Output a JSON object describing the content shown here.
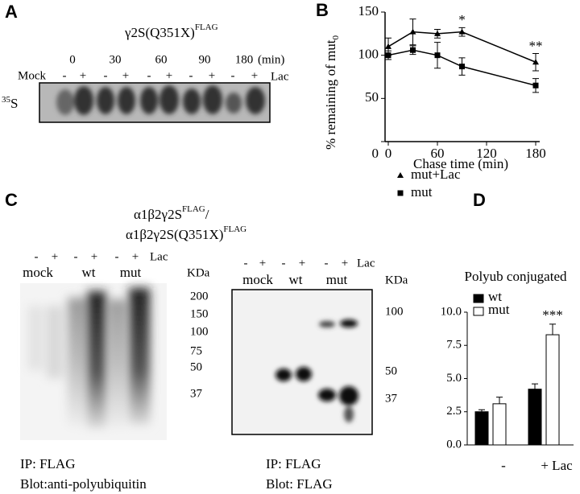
{
  "panels": {
    "a": {
      "letter": "A",
      "title": "γ2S(Q351X)",
      "title_sup": "FLAG",
      "times": [
        "0",
        "30",
        "60",
        "90",
        "180"
      ],
      "time_unit": "(min)",
      "mock": "Mock",
      "signs": [
        "-",
        "+",
        "-",
        "+",
        "-",
        "+",
        "-",
        "+",
        "-",
        "+"
      ],
      "lac": "Lac",
      "isotope_sup": "35",
      "isotope": "S"
    },
    "c": {
      "letter": "C",
      "title1": "α1β2γ2S",
      "title1_sup": "FLAG",
      "title1_end": "/",
      "title2": "α1β2γ2S(Q351X)",
      "title2_sup": "FLAG",
      "left": {
        "signs": [
          "-",
          "+",
          "-",
          "+",
          "-",
          "+"
        ],
        "lac": "Lac",
        "groups": [
          "mock",
          "wt",
          "mut"
        ],
        "unit": "KDa",
        "markers": [
          200,
          150,
          100,
          75,
          50,
          37
        ],
        "ip": "IP: FLAG",
        "blot": "Blot:anti-polyubiquitin"
      },
      "right": {
        "signs": [
          "-",
          "+",
          "-",
          "+",
          "-",
          "+"
        ],
        "lac": "Lac",
        "groups": [
          "mock",
          "wt",
          "mut"
        ],
        "unit": "KDa",
        "markers": [
          100,
          50,
          37
        ],
        "ip": "IP:   FLAG",
        "blot": "Blot: FLAG"
      }
    }
  },
  "chart_data": [
    {
      "type": "line",
      "letter": "B",
      "ylabel": "% remaining of mut",
      "ylabel_sub": "0",
      "xlabel": "Chase time (min)",
      "x": [
        0,
        30,
        60,
        90,
        180
      ],
      "xlim": [
        0,
        180
      ],
      "xticks": [
        0,
        60,
        120,
        180
      ],
      "ylim": [
        0,
        150
      ],
      "yticks": [
        0,
        50,
        100,
        150
      ],
      "series": [
        {
          "name": "mut+Lac",
          "color": "#000000",
          "marker": "triangle",
          "values": [
            110,
            127,
            125,
            127,
            92
          ],
          "errors": [
            10,
            15,
            5,
            5,
            10
          ]
        },
        {
          "name": "mut",
          "color": "#000000",
          "marker": "square",
          "values": [
            100,
            106,
            100,
            87,
            65
          ],
          "errors": [
            5,
            5,
            15,
            10,
            8
          ]
        }
      ],
      "annotations": [
        {
          "text": "*",
          "x": 90
        },
        {
          "text": "**",
          "x": 180
        }
      ]
    },
    {
      "type": "bar",
      "letter": "D",
      "title": "Polyub conjugated",
      "categories": [
        "-",
        "+ Lac"
      ],
      "ylim": [
        0,
        10
      ],
      "yticks": [
        {
          "value": 0,
          "label": "0.0"
        },
        {
          "value": 2.5,
          "label": "2.5"
        },
        {
          "value": 5,
          "label": "5.0"
        },
        {
          "value": 7.5,
          "label": "7.5"
        },
        {
          "value": 10,
          "label": "10.0"
        }
      ],
      "series": [
        {
          "name": "wt",
          "color": "#000000",
          "values": [
            2.5,
            4.2
          ],
          "errors": [
            0.15,
            0.4
          ]
        },
        {
          "name": "mut",
          "color": "#ffffff",
          "values": [
            3.1,
            8.3
          ],
          "errors": [
            0.5,
            0.8
          ]
        }
      ],
      "annotations": [
        {
          "text": "***",
          "category": "+ Lac"
        }
      ]
    }
  ]
}
